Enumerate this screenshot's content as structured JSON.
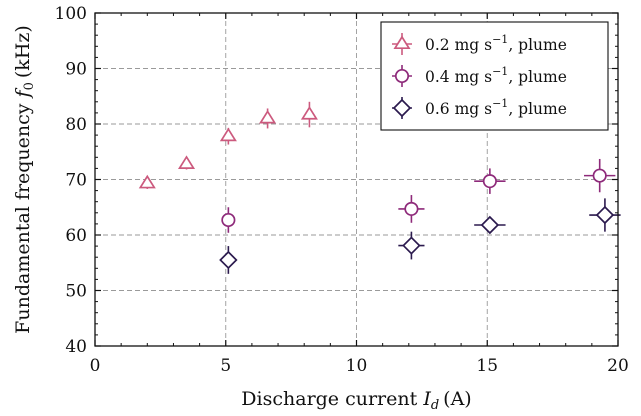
{
  "chart_data": {
    "type": "scatter",
    "xlabel_main": "Discharge current",
    "xlabel_symbol": "I",
    "xlabel_sub": "d",
    "xlabel_unit": "(A)",
    "ylabel_main": "Fundamental frequency",
    "ylabel_symbol": "f",
    "ylabel_sub": "0",
    "ylabel_unit": "(kHz)",
    "xlim": [
      0,
      20
    ],
    "ylim": [
      40,
      100
    ],
    "xticks": [
      0,
      5,
      10,
      15,
      20
    ],
    "yticks": [
      40,
      50,
      60,
      70,
      80,
      90,
      100
    ],
    "xtick_labels": [
      "0",
      "5",
      "10",
      "15",
      "20"
    ],
    "ytick_labels": [
      "40",
      "50",
      "60",
      "70",
      "80",
      "90",
      "100"
    ],
    "grid": true,
    "legend_position": "top-right",
    "series": [
      {
        "name_prefix": "0.2 mg s",
        "name_exp": "−1",
        "name_suffix": ", plume",
        "marker": "triangle",
        "color": "#cc5a7e",
        "points": [
          {
            "x": 2.0,
            "y": 69.3,
            "xerr": 0.0,
            "yerr": 1.0
          },
          {
            "x": 3.5,
            "y": 72.8,
            "xerr": 0.0,
            "yerr": 1.0
          },
          {
            "x": 5.1,
            "y": 77.8,
            "xerr": 0.0,
            "yerr": 1.5
          },
          {
            "x": 6.6,
            "y": 81.0,
            "xerr": 0.0,
            "yerr": 1.8
          },
          {
            "x": 8.2,
            "y": 81.7,
            "xerr": 0.0,
            "yerr": 2.3
          }
        ]
      },
      {
        "name_prefix": "0.4 mg s",
        "name_exp": "−1",
        "name_suffix": ", plume",
        "marker": "circle",
        "color": "#8e2a7a",
        "points": [
          {
            "x": 5.1,
            "y": 62.7,
            "xerr": 0.0,
            "yerr": 2.3
          },
          {
            "x": 12.1,
            "y": 64.7,
            "xerr": 0.5,
            "yerr": 2.5
          },
          {
            "x": 15.1,
            "y": 69.7,
            "xerr": 0.6,
            "yerr": 2.3
          },
          {
            "x": 19.3,
            "y": 70.7,
            "xerr": 0.6,
            "yerr": 3.0
          }
        ]
      },
      {
        "name_prefix": "0.6 mg s",
        "name_exp": "−1",
        "name_suffix": ", plume",
        "marker": "diamond",
        "color": "#2b1a4e",
        "points": [
          {
            "x": 5.1,
            "y": 55.5,
            "xerr": 0.0,
            "yerr": 2.5
          },
          {
            "x": 12.1,
            "y": 58.1,
            "xerr": 0.5,
            "yerr": 2.5
          },
          {
            "x": 15.1,
            "y": 61.8,
            "xerr": 0.6,
            "yerr": 1.5
          },
          {
            "x": 19.5,
            "y": 63.6,
            "xerr": 0.6,
            "yerr": 3.0
          }
        ]
      }
    ]
  }
}
